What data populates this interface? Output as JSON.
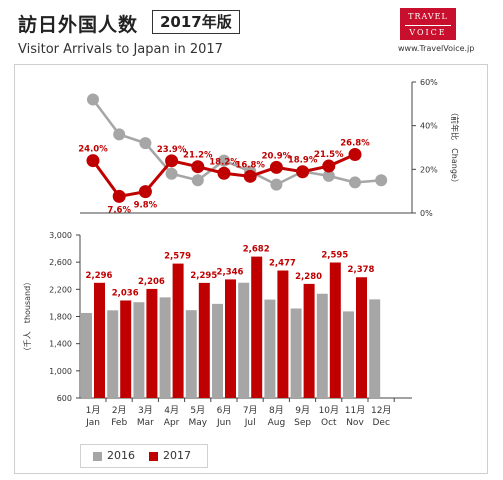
{
  "header": {
    "title_jp": "訪日外国人数",
    "year_badge": "2017年版",
    "title_en": "Visitor Arrivals to Japan in 2017",
    "logo_line1": "TRAVEL",
    "logo_line2": "VOICE",
    "url": "www.TravelVoice.jp"
  },
  "colors": {
    "s2016": "#a6a6a6",
    "s2017": "#c00000"
  },
  "chart_data": [
    {
      "type": "line",
      "y_axis_side": "right",
      "ylabel": "（前年比　Change）",
      "ylim": [
        0,
        60
      ],
      "yticks": [
        "0%",
        "20%",
        "40%",
        "60%"
      ],
      "x": [
        "Jan",
        "Feb",
        "Mar",
        "Apr",
        "May",
        "Jun",
        "Jul",
        "Aug",
        "Sep",
        "Oct",
        "Nov",
        "Dec"
      ],
      "series": [
        {
          "name": "2016",
          "values": [
            52,
            36,
            32,
            18,
            15,
            24,
            19,
            13,
            19,
            17,
            14,
            15
          ]
        },
        {
          "name": "2017",
          "values": [
            24.0,
            7.6,
            9.8,
            23.9,
            21.2,
            18.2,
            16.8,
            20.9,
            18.9,
            21.5,
            26.8,
            null
          ],
          "data_labels": [
            "24.0%",
            "7.6%",
            "9.8%",
            "23.9%",
            "21.2%",
            "18.2%",
            "16.8%",
            "20.9%",
            "18.9%",
            "21.5%",
            "26.8%",
            ""
          ]
        }
      ]
    },
    {
      "type": "bar",
      "ylabel": "（千人　thousand）",
      "ylim": [
        600,
        3000
      ],
      "yticks": [
        "600",
        "1,000",
        "1,400",
        "1,800",
        "2,200",
        "2,600",
        "3,000"
      ],
      "categories_jp": [
        "1月",
        "2月",
        "3月",
        "4月",
        "5月",
        "6月",
        "7月",
        "8月",
        "9月",
        "10月",
        "11月",
        "12月"
      ],
      "categories": [
        "Jan",
        "Feb",
        "Mar",
        "Apr",
        "May",
        "Jun",
        "Jul",
        "Aug",
        "Sep",
        "Oct",
        "Nov",
        "Dec"
      ],
      "series": [
        {
          "name": "2016",
          "values": [
            1852,
            1891,
            2010,
            2082,
            1893,
            1986,
            2297,
            2049,
            1918,
            2135,
            1875,
            2052
          ]
        },
        {
          "name": "2017",
          "values": [
            2296,
            2036,
            2206,
            2579,
            2295,
            2346,
            2682,
            2477,
            2280,
            2595,
            2378,
            null
          ],
          "data_labels": [
            "2,296",
            "2,036",
            "2,206",
            "2,579",
            "2,295",
            "2,346",
            "2,682",
            "2,477",
            "2,280",
            "2,595",
            "2,378",
            ""
          ]
        }
      ]
    }
  ],
  "legend": {
    "s2016": "2016",
    "s2017": "2017"
  }
}
